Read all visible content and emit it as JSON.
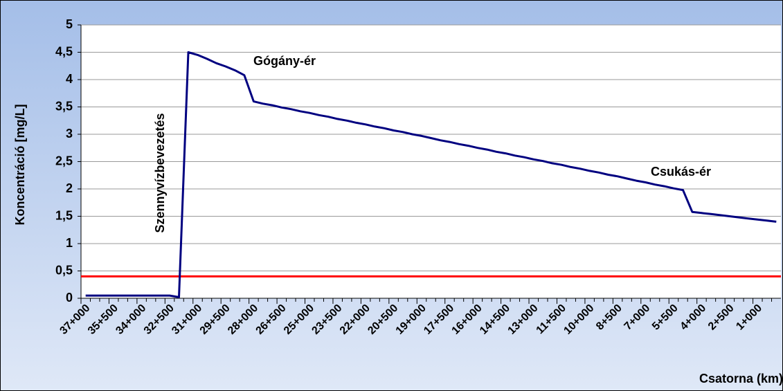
{
  "chart_data": {
    "type": "line",
    "x_label": "Csatorna (km)",
    "y_label": "Koncentráció [mg/L]",
    "annotations": [
      "Szennyvízbevezetés",
      "Gógány-ér",
      "Csukás-ér"
    ],
    "categories": [
      "37+000",
      null,
      null,
      "35+500",
      null,
      null,
      "34+000",
      null,
      null,
      "32+500",
      null,
      null,
      "31+000",
      null,
      null,
      "29+500",
      null,
      null,
      "28+000",
      null,
      null,
      "26+500",
      null,
      null,
      "25+000",
      null,
      null,
      "23+500",
      null,
      null,
      "22+000",
      null,
      null,
      "20+500",
      null,
      null,
      "19+000",
      null,
      null,
      "17+500",
      null,
      null,
      "16+000",
      null,
      null,
      "14+500",
      null,
      null,
      "13+000",
      null,
      null,
      "11+500",
      null,
      null,
      "10+000",
      null,
      null,
      "8+500",
      null,
      null,
      "7+000",
      null,
      null,
      "5+500",
      null,
      null,
      "4+000",
      null,
      null,
      "2+500",
      null,
      null,
      "1+000",
      null,
      null
    ],
    "series": [
      {
        "color": "#000080",
        "values": [
          0.05,
          0.05,
          0.05,
          0.05,
          0.05,
          0.05,
          0.05,
          0.05,
          0.05,
          0.05,
          0.02,
          4.5,
          4.45,
          4.38,
          4.3,
          4.24,
          4.17,
          4.08,
          3.6,
          3.56,
          3.53,
          3.49,
          3.46,
          3.42,
          3.39,
          3.35,
          3.32,
          3.28,
          3.25,
          3.21,
          3.18,
          3.14,
          3.11,
          3.07,
          3.04,
          3.0,
          2.97,
          2.93,
          2.89,
          2.86,
          2.82,
          2.79,
          2.75,
          2.72,
          2.68,
          2.65,
          2.61,
          2.58,
          2.54,
          2.51,
          2.47,
          2.44,
          2.4,
          2.37,
          2.33,
          2.3,
          2.26,
          2.23,
          2.19,
          2.15,
          2.12,
          2.08,
          2.05,
          2.01,
          1.98,
          1.58,
          1.56,
          1.54,
          1.52,
          1.5,
          1.48,
          1.46,
          1.44,
          1.42,
          1.4
        ]
      }
    ],
    "threshold": {
      "value": 0.4,
      "color": "#ff0000"
    },
    "ylim": [
      0,
      5
    ],
    "yticks": [
      0,
      {
        "value": 0.5,
        "label": "0,5"
      },
      1,
      {
        "value": 1.5,
        "label": "1,5"
      },
      2,
      {
        "value": 2.5,
        "label": "2,5"
      },
      3,
      {
        "value": 3.5,
        "label": "3,5"
      },
      4,
      {
        "value": 4.5,
        "label": "4,5"
      },
      5
    ],
    "grid": true
  }
}
